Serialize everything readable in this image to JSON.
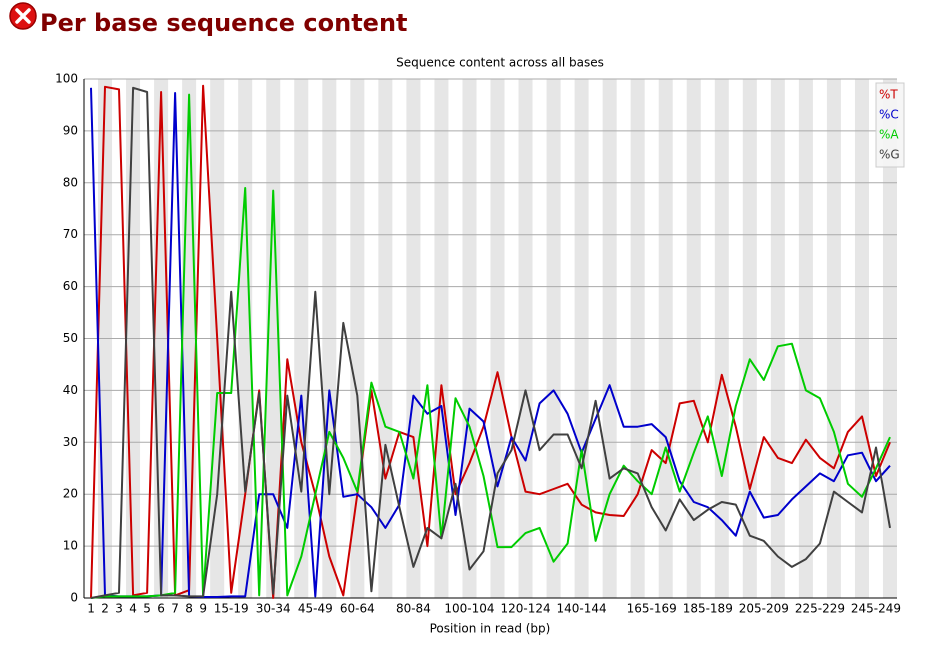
{
  "heading": "Per base sequence content",
  "chart_data": {
    "type": "line",
    "title": "Sequence content across all bases",
    "x_label": "Position in read (bp)",
    "categories": [
      "1",
      "2",
      "3",
      "4",
      "5",
      "6",
      "7",
      "8",
      "9",
      null,
      "15-19",
      null,
      null,
      "30-34",
      null,
      null,
      "45-49",
      null,
      null,
      "60-64",
      null,
      null,
      null,
      "80-84",
      null,
      null,
      null,
      "100-104",
      null,
      null,
      null,
      "120-124",
      null,
      null,
      null,
      "140-144",
      null,
      null,
      null,
      null,
      "165-169",
      null,
      null,
      null,
      "185-189",
      null,
      null,
      null,
      "205-209",
      null,
      null,
      null,
      "225-229",
      null,
      null,
      null,
      "245-249",
      null
    ],
    "series": [
      {
        "name": "%T",
        "color": "#cc0000",
        "values": [
          0,
          98.5,
          98,
          0.5,
          1,
          97.5,
          0.5,
          1.5,
          98.7,
          50,
          1,
          20,
          40,
          0,
          46,
          30,
          20,
          8,
          0.5,
          20,
          40,
          23,
          32,
          31,
          10,
          41,
          20,
          26,
          33,
          43.5,
          31,
          20.5,
          20,
          21,
          22,
          18,
          16.5,
          16,
          15.8,
          20,
          28.5,
          26,
          37.5,
          38,
          30,
          43,
          33,
          21,
          31,
          27,
          26,
          30.5,
          27,
          25,
          32,
          35,
          23.5,
          30
        ]
      },
      {
        "name": "%C",
        "color": "#0000cc",
        "values": [
          98.3,
          0.5,
          0.3,
          0.3,
          0.3,
          0.5,
          97.3,
          0.3,
          0.2,
          0.2,
          0.3,
          0.3,
          20,
          20,
          13.5,
          39,
          0.3,
          40,
          19.5,
          20,
          17.5,
          13.5,
          18,
          39,
          35.5,
          37,
          16,
          36.5,
          34,
          21.5,
          31,
          26.5,
          37.5,
          40,
          35.5,
          28,
          34.5,
          41,
          33,
          33,
          33.5,
          31,
          22.5,
          18.5,
          17.5,
          15,
          12,
          20.5,
          15.5,
          16,
          19,
          21.5,
          24,
          22.5,
          27.5,
          28,
          22.5,
          25.5
        ]
      },
      {
        "name": "%A",
        "color": "#00cc00",
        "values": [
          0,
          0.3,
          0.3,
          0.3,
          0.3,
          0.5,
          1,
          97,
          0.3,
          39.5,
          39.5,
          79,
          0.5,
          78.5,
          0.5,
          8,
          20,
          32,
          27,
          20.5,
          41.5,
          33,
          32,
          23,
          41,
          11.5,
          38.5,
          33,
          23.5,
          9.8,
          9.8,
          12.5,
          13.5,
          7,
          10.5,
          28.5,
          11,
          20,
          25.5,
          22.5,
          20,
          29,
          20.5,
          28,
          35,
          23.5,
          37,
          46,
          42,
          48.5,
          49,
          40,
          38.5,
          32,
          22,
          19.5,
          25,
          31
        ]
      },
      {
        "name": "%G",
        "color": "#404040",
        "values": [
          0,
          0.5,
          1,
          98.3,
          97.5,
          0.5,
          0.5,
          0.3,
          0.3,
          20,
          59,
          20.5,
          39.5,
          0.8,
          39,
          20.5,
          59,
          20,
          53,
          39,
          1.3,
          29.5,
          17.5,
          6,
          13.5,
          11.5,
          22,
          5.5,
          9,
          24,
          28.5,
          40,
          28.5,
          31.5,
          31.5,
          25,
          38,
          23,
          25,
          24,
          17.5,
          13,
          19,
          15,
          17,
          18.5,
          18,
          12,
          11,
          8,
          6,
          7.5,
          10.5,
          20.5,
          18.5,
          16.5,
          29,
          13.5
        ]
      }
    ],
    "ylim": [
      0,
      100
    ],
    "yticks": [
      0,
      10,
      20,
      30,
      40,
      50,
      60,
      70,
      80,
      90,
      100
    ],
    "grid": true,
    "legend": "top-right"
  }
}
